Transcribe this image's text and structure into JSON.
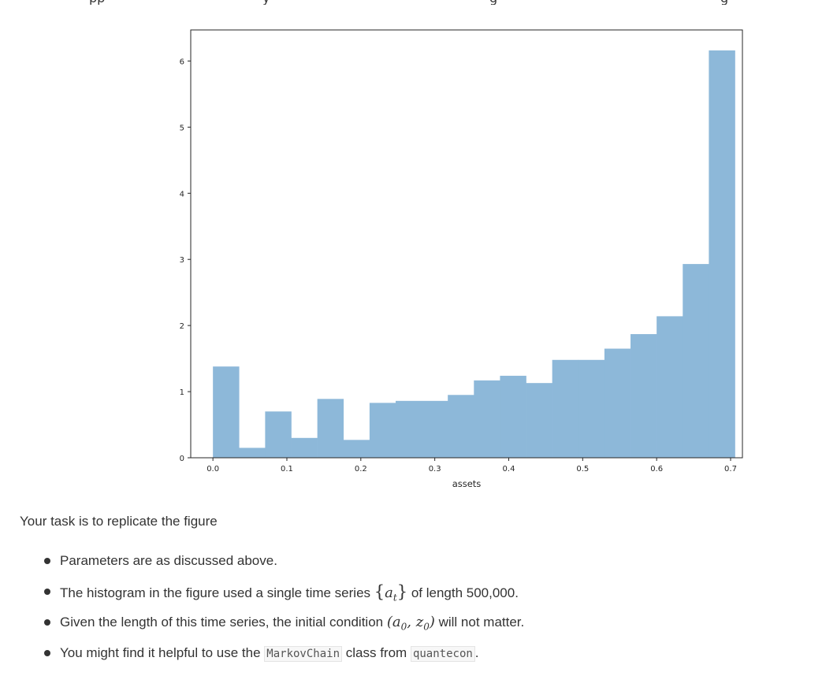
{
  "page": {
    "top_fragments": [
      "pp",
      "y",
      "g",
      "g"
    ]
  },
  "chart_data": {
    "type": "bar",
    "subtype": "histogram",
    "xlabel": "assets",
    "ylabel": "",
    "title": "",
    "xlim": [
      -0.03,
      0.716
    ],
    "ylim": [
      0,
      6.47
    ],
    "x_ticks": [
      0.0,
      0.1,
      0.2,
      0.3,
      0.4,
      0.5,
      0.6,
      0.7
    ],
    "x_tick_labels": [
      "0.0",
      "0.1",
      "0.2",
      "0.3",
      "0.4",
      "0.5",
      "0.6",
      "0.7"
    ],
    "y_ticks": [
      0,
      1,
      2,
      3,
      4,
      5,
      6
    ],
    "y_tick_labels": [
      "0",
      "1",
      "2",
      "3",
      "4",
      "5",
      "6"
    ],
    "bin_edges": [
      0.0,
      0.0353,
      0.0706,
      0.1059,
      0.1412,
      0.1765,
      0.2118,
      0.2471,
      0.2824,
      0.3176,
      0.3529,
      0.3882,
      0.4235,
      0.4588,
      0.4941,
      0.5294,
      0.5647,
      0.6,
      0.6353,
      0.6706,
      0.7059
    ],
    "values": [
      1.38,
      0.15,
      0.7,
      0.3,
      0.89,
      0.27,
      0.83,
      0.86,
      0.86,
      0.95,
      1.17,
      1.24,
      1.13,
      1.48,
      1.48,
      1.65,
      1.87,
      2.14,
      2.93,
      6.16
    ],
    "color": "#8db8d9",
    "grid": false,
    "legend": false
  },
  "text": {
    "task": "Your task is to replicate the figure",
    "bullets": {
      "b1": "Parameters are as discussed above.",
      "b2_pre": "The histogram in the figure used a single time series",
      "b2_math_open": "{",
      "b2_math_var": "a",
      "b2_math_sub": "t",
      "b2_math_close": "}",
      "b2_post": "of length 500,000.",
      "b3_pre": "Given the length of this time series, the initial condition",
      "b3_math": "(a",
      "b3_sub0": "0",
      "b3_math2": ", z",
      "b3_sub1": "0",
      "b3_math3": ")",
      "b3_post": "will not matter.",
      "b4_pre": "You might find it helpful to use the",
      "b4_code1": "MarkovChain",
      "b4_mid": "class from",
      "b4_code2": "quantecon",
      "b4_post": "."
    }
  }
}
